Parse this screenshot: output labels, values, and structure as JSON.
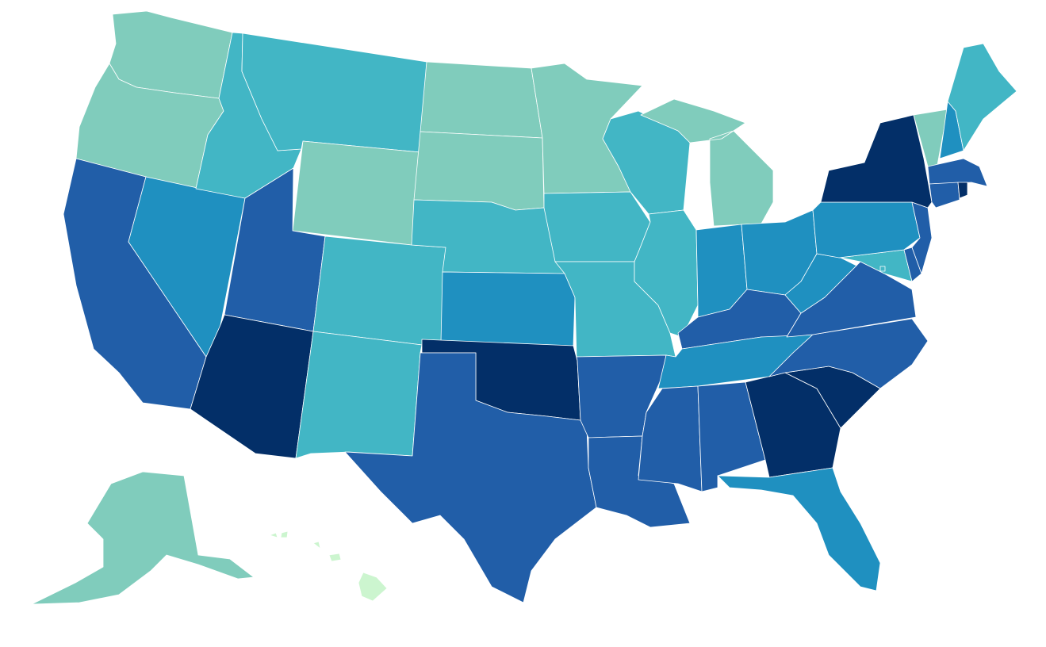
{
  "palette": {
    "level_1": "#ccf5cf",
    "level_2": "#80ccbc",
    "level_3": "#42b6c5",
    "level_4": "#1f90c0",
    "level_5": "#215ea8",
    "level_6": "#032f68"
  },
  "states": [
    {
      "id": "WA",
      "level": 2
    },
    {
      "id": "OR",
      "level": 2
    },
    {
      "id": "CA",
      "level": 5
    },
    {
      "id": "NV",
      "level": 4
    },
    {
      "id": "ID",
      "level": 3
    },
    {
      "id": "MT",
      "level": 3
    },
    {
      "id": "WY",
      "level": 2
    },
    {
      "id": "UT",
      "level": 5
    },
    {
      "id": "AZ",
      "level": 6
    },
    {
      "id": "CO",
      "level": 3
    },
    {
      "id": "NM",
      "level": 3
    },
    {
      "id": "ND",
      "level": 2
    },
    {
      "id": "SD",
      "level": 2
    },
    {
      "id": "NE",
      "level": 3
    },
    {
      "id": "KS",
      "level": 4
    },
    {
      "id": "OK",
      "level": 6
    },
    {
      "id": "TX",
      "level": 5
    },
    {
      "id": "MN",
      "level": 2
    },
    {
      "id": "IA",
      "level": 3
    },
    {
      "id": "MO",
      "level": 3
    },
    {
      "id": "AR",
      "level": 5
    },
    {
      "id": "LA",
      "level": 5
    },
    {
      "id": "WI",
      "level": 3
    },
    {
      "id": "IL",
      "level": 3
    },
    {
      "id": "MI",
      "level": 2
    },
    {
      "id": "IN",
      "level": 4
    },
    {
      "id": "OH",
      "level": 4
    },
    {
      "id": "KY",
      "level": 5
    },
    {
      "id": "TN",
      "level": 4
    },
    {
      "id": "MS",
      "level": 5
    },
    {
      "id": "AL",
      "level": 5
    },
    {
      "id": "GA",
      "level": 6
    },
    {
      "id": "FL",
      "level": 4
    },
    {
      "id": "SC",
      "level": 6
    },
    {
      "id": "NC",
      "level": 5
    },
    {
      "id": "VA",
      "level": 5
    },
    {
      "id": "WV",
      "level": 4
    },
    {
      "id": "PA",
      "level": 4
    },
    {
      "id": "NY",
      "level": 6
    },
    {
      "id": "VT",
      "level": 2
    },
    {
      "id": "NH",
      "level": 4
    },
    {
      "id": "ME",
      "level": 3
    },
    {
      "id": "MA",
      "level": 5
    },
    {
      "id": "RI",
      "level": 6
    },
    {
      "id": "CT",
      "level": 5
    },
    {
      "id": "NJ",
      "level": 5
    },
    {
      "id": "DE",
      "level": 5
    },
    {
      "id": "MD",
      "level": 3
    },
    {
      "id": "DC",
      "level": 3
    },
    {
      "id": "AK",
      "level": 2
    },
    {
      "id": "HI",
      "level": 1
    }
  ]
}
